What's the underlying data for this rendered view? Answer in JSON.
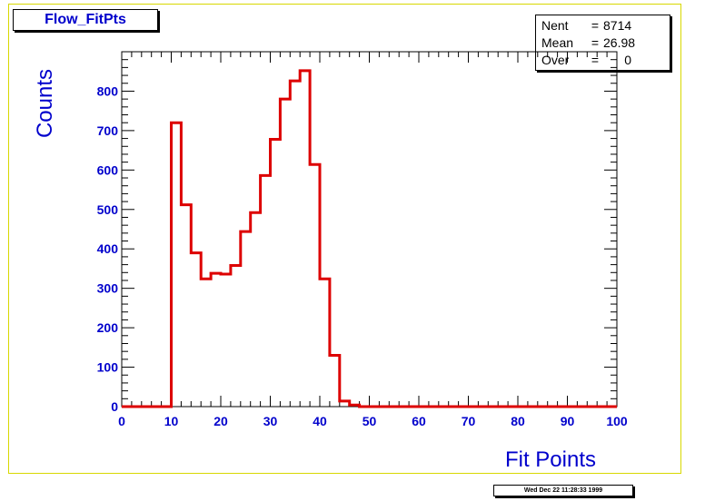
{
  "title": "Flow_FitPts",
  "stats": {
    "rows": [
      {
        "label": "Nent",
        "value": "8714"
      },
      {
        "label": "Mean",
        "value": "26.98"
      },
      {
        "label": "Over",
        "value": "0"
      }
    ]
  },
  "timestamp": "Wed Dec 22 11:28:33 1999",
  "colors": {
    "line": "#dd0000",
    "text": "#0000cc",
    "frame": "#d8d800"
  },
  "chart_data": {
    "type": "histogram",
    "title": "Flow_FitPts",
    "xlabel": "Fit Points",
    "ylabel": "Counts",
    "xlim": [
      0,
      100
    ],
    "ylim": [
      0,
      900
    ],
    "bin_width": 2,
    "bin_edges_start": 0,
    "values": [
      0,
      0,
      0,
      0,
      0,
      720,
      512,
      390,
      324,
      338,
      336,
      358,
      444,
      492,
      586,
      678,
      780,
      826,
      852,
      614,
      324,
      130,
      14,
      4,
      0,
      0,
      0,
      0,
      0,
      0,
      0,
      0,
      0,
      0,
      0,
      0,
      0,
      0,
      0,
      0,
      0,
      0,
      0,
      0,
      0,
      0,
      0,
      0,
      0,
      0
    ],
    "x_ticks": [
      0,
      10,
      20,
      30,
      40,
      50,
      60,
      70,
      80,
      90,
      100
    ],
    "y_ticks": [
      0,
      100,
      200,
      300,
      400,
      500,
      600,
      700,
      800
    ],
    "grid": false
  }
}
